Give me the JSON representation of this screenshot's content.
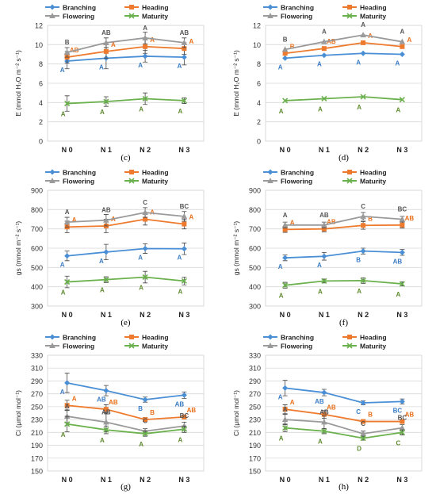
{
  "colors": {
    "Branching": "#4a8fd6",
    "Heading": "#ee7a2d",
    "Flowering": "#9a9a9a",
    "Maturity": "#6ab04c",
    "letter_Branching": "#3a7cc4",
    "letter_Heading": "#e86f1a",
    "letter_Flowering": "#555555",
    "letter_Maturity": "#5e8b2e"
  },
  "chart_data": [
    {
      "id": "c",
      "type": "line",
      "panel_label": "(c)",
      "ylabel": "E (mmol H₂O m⁻² s⁻¹)",
      "categories": [
        "N 0",
        "N 1",
        "N 2",
        "N 3"
      ],
      "ylim": [
        0,
        12
      ],
      "yticks": [
        0,
        2,
        4,
        6,
        8,
        10,
        12
      ],
      "grid": true,
      "legend": "top",
      "series": [
        {
          "name": "Branching",
          "marker": "diamond",
          "values": [
            8.3,
            8.6,
            8.8,
            8.7
          ],
          "errors": [
            0.8,
            1.1,
            0.6,
            0.8
          ],
          "letters": [
            "A",
            "A",
            "A",
            "A"
          ]
        },
        {
          "name": "Heading",
          "marker": "square",
          "values": [
            8.7,
            9.3,
            9.8,
            9.6
          ],
          "errors": [
            0.6,
            0.7,
            0.7,
            0.6
          ],
          "letters": [
            "AB",
            "A",
            "A",
            "A"
          ]
        },
        {
          "name": "Flowering",
          "marker": "triangle",
          "values": [
            9.2,
            10.2,
            10.7,
            10.2
          ],
          "errors": [
            0.5,
            0.5,
            0.6,
            0.5
          ],
          "letters": [
            "B",
            "AB",
            "A",
            "AB"
          ]
        },
        {
          "name": "Maturity",
          "marker": "x",
          "values": [
            3.9,
            4.1,
            4.4,
            4.2
          ],
          "errors": [
            0.8,
            0.5,
            0.6,
            0.3
          ],
          "letters": [
            "A",
            "A",
            "A",
            "A"
          ]
        }
      ]
    },
    {
      "id": "d",
      "type": "line",
      "panel_label": "(d)",
      "ylabel": "E (mmol H₂O m⁻² s⁻¹)",
      "categories": [
        "N 0",
        "N 1",
        "N 2",
        "N 3"
      ],
      "ylim": [
        0,
        12
      ],
      "yticks": [
        0,
        2,
        4,
        6,
        8,
        10,
        12
      ],
      "grid": true,
      "legend": "top",
      "series": [
        {
          "name": "Branching",
          "marker": "diamond",
          "values": [
            8.6,
            8.9,
            9.1,
            9.0
          ],
          "errors": [
            0,
            0,
            0,
            0
          ],
          "letters": [
            "A",
            "A",
            "A",
            "A"
          ]
        },
        {
          "name": "Heading",
          "marker": "square",
          "values": [
            9.1,
            9.6,
            10.2,
            9.8
          ],
          "errors": [
            0,
            0,
            0,
            0
          ],
          "letters": [
            "B",
            "AB",
            "A",
            "A"
          ]
        },
        {
          "name": "Flowering",
          "marker": "triangle",
          "values": [
            9.5,
            10.3,
            11.0,
            10.3
          ],
          "errors": [
            0,
            0,
            0,
            0
          ],
          "letters": [
            "B",
            "A",
            "A",
            "A"
          ]
        },
        {
          "name": "Maturity",
          "marker": "x",
          "values": [
            4.2,
            4.4,
            4.6,
            4.3
          ],
          "errors": [
            0,
            0,
            0,
            0
          ],
          "letters": [
            "A",
            "A",
            "A",
            "A"
          ]
        }
      ]
    },
    {
      "id": "e",
      "type": "line",
      "panel_label": "(e)",
      "ylabel": "gs (mmol m⁻² s⁻¹)",
      "categories": [
        "N 0",
        "N 1",
        "N 2",
        "N 3"
      ],
      "ylim": [
        300,
        900
      ],
      "yticks": [
        300,
        400,
        500,
        600,
        700,
        800,
        900
      ],
      "grid": true,
      "legend": "top",
      "series": [
        {
          "name": "Branching",
          "marker": "diamond",
          "values": [
            560,
            580,
            598,
            597
          ],
          "errors": [
            25,
            40,
            25,
            30
          ],
          "letters": [
            "A",
            "A",
            "A",
            "A"
          ]
        },
        {
          "name": "Heading",
          "marker": "square",
          "values": [
            710,
            715,
            750,
            725
          ],
          "errors": [
            30,
            35,
            30,
            25
          ],
          "letters": [
            "A",
            "A",
            "A",
            "A"
          ]
        },
        {
          "name": "Flowering",
          "marker": "triangle",
          "values": [
            735,
            745,
            785,
            765
          ],
          "errors": [
            25,
            30,
            25,
            25
          ],
          "letters": [
            "A",
            "AB",
            "C",
            "BC"
          ]
        },
        {
          "name": "Maturity",
          "marker": "x",
          "values": [
            425,
            437,
            450,
            430
          ],
          "errors": [
            30,
            15,
            30,
            20
          ],
          "letters": [
            "A",
            "A",
            "A",
            "A"
          ]
        }
      ]
    },
    {
      "id": "f",
      "type": "line",
      "panel_label": "(f)",
      "ylabel": "gs (mmol m⁻² s⁻¹)",
      "categories": [
        "N 0",
        "N 1",
        "N 2",
        "N 3"
      ],
      "ylim": [
        300,
        900
      ],
      "yticks": [
        300,
        400,
        500,
        600,
        700,
        800,
        900
      ],
      "grid": true,
      "legend": "top",
      "series": [
        {
          "name": "Branching",
          "marker": "diamond",
          "values": [
            550,
            558,
            585,
            578
          ],
          "errors": [
            15,
            20,
            15,
            15
          ],
          "letters": [
            "A",
            "A",
            "B",
            "AB"
          ]
        },
        {
          "name": "Heading",
          "marker": "square",
          "values": [
            697,
            700,
            718,
            720
          ],
          "errors": [
            15,
            15,
            20,
            15
          ],
          "letters": [
            "A",
            "AB",
            "B",
            "AB"
          ]
        },
        {
          "name": "Flowering",
          "marker": "triangle",
          "values": [
            720,
            720,
            765,
            750
          ],
          "errors": [
            15,
            15,
            20,
            15
          ],
          "letters": [
            "A",
            "AB",
            "C",
            "BC"
          ]
        },
        {
          "name": "Maturity",
          "marker": "x",
          "values": [
            408,
            430,
            432,
            415
          ],
          "errors": [
            15,
            10,
            15,
            10
          ],
          "letters": [
            "A",
            "A",
            "A",
            "A"
          ]
        }
      ]
    },
    {
      "id": "g",
      "type": "line",
      "panel_label": "(g)",
      "ylabel": "Ci (μmol mol⁻¹)",
      "categories": [
        "N 0",
        "N 1",
        "N 2",
        "N 3"
      ],
      "ylim": [
        150,
        330
      ],
      "yticks": [
        150,
        170,
        190,
        210,
        230,
        250,
        270,
        290,
        310,
        330
      ],
      "grid": true,
      "legend": "top",
      "series": [
        {
          "name": "Branching",
          "marker": "diamond",
          "values": [
            287,
            275,
            261,
            268
          ],
          "errors": [
            15,
            8,
            4,
            5
          ],
          "letters": [
            "A",
            "AB",
            "B",
            "AB"
          ]
        },
        {
          "name": "Heading",
          "marker": "square",
          "values": [
            252,
            246,
            230,
            234
          ],
          "errors": [
            8,
            7,
            3,
            3
          ],
          "letters": [
            "A",
            "AB",
            "B",
            "AB"
          ]
        },
        {
          "name": "Flowering",
          "marker": "triangle",
          "values": [
            235,
            226,
            212,
            220
          ],
          "errors": [
            10,
            15,
            4,
            6
          ],
          "letters": [
            "A",
            "AB",
            "C",
            "BC"
          ]
        },
        {
          "name": "Maturity",
          "marker": "x",
          "values": [
            223,
            214,
            208,
            215
          ],
          "errors": [
            12,
            6,
            4,
            5
          ],
          "letters": [
            "A",
            "A",
            "A",
            "A"
          ]
        }
      ]
    },
    {
      "id": "h",
      "type": "line",
      "panel_label": "(h)",
      "ylabel": "Ci (μmol mol⁻¹)",
      "categories": [
        "N 0",
        "N 1",
        "N 2",
        "N 3"
      ],
      "ylim": [
        150,
        330
      ],
      "yticks": [
        150,
        170,
        190,
        210,
        230,
        250,
        270,
        290,
        310,
        330
      ],
      "grid": true,
      "legend": "top",
      "series": [
        {
          "name": "Branching",
          "marker": "diamond",
          "values": [
            279,
            272,
            256,
            258
          ],
          "errors": [
            12,
            5,
            3,
            4
          ],
          "letters": [
            "A",
            "AB",
            "C",
            "BC"
          ]
        },
        {
          "name": "Heading",
          "marker": "square",
          "values": [
            246,
            238,
            227,
            227
          ],
          "errors": [
            7,
            6,
            2,
            3
          ],
          "letters": [
            "A",
            "AB",
            "B",
            "AB"
          ]
        },
        {
          "name": "Flowering",
          "marker": "triangle",
          "values": [
            230,
            226,
            208,
            217
          ],
          "errors": [
            8,
            10,
            4,
            5
          ],
          "letters": [
            "A",
            "AB",
            "C",
            "BC"
          ]
        },
        {
          "name": "Maturity",
          "marker": "x",
          "values": [
            217,
            212,
            201,
            210
          ],
          "errors": [
            6,
            4,
            3,
            4
          ],
          "letters": [
            "A",
            "A",
            "D",
            "C"
          ]
        }
      ]
    }
  ]
}
